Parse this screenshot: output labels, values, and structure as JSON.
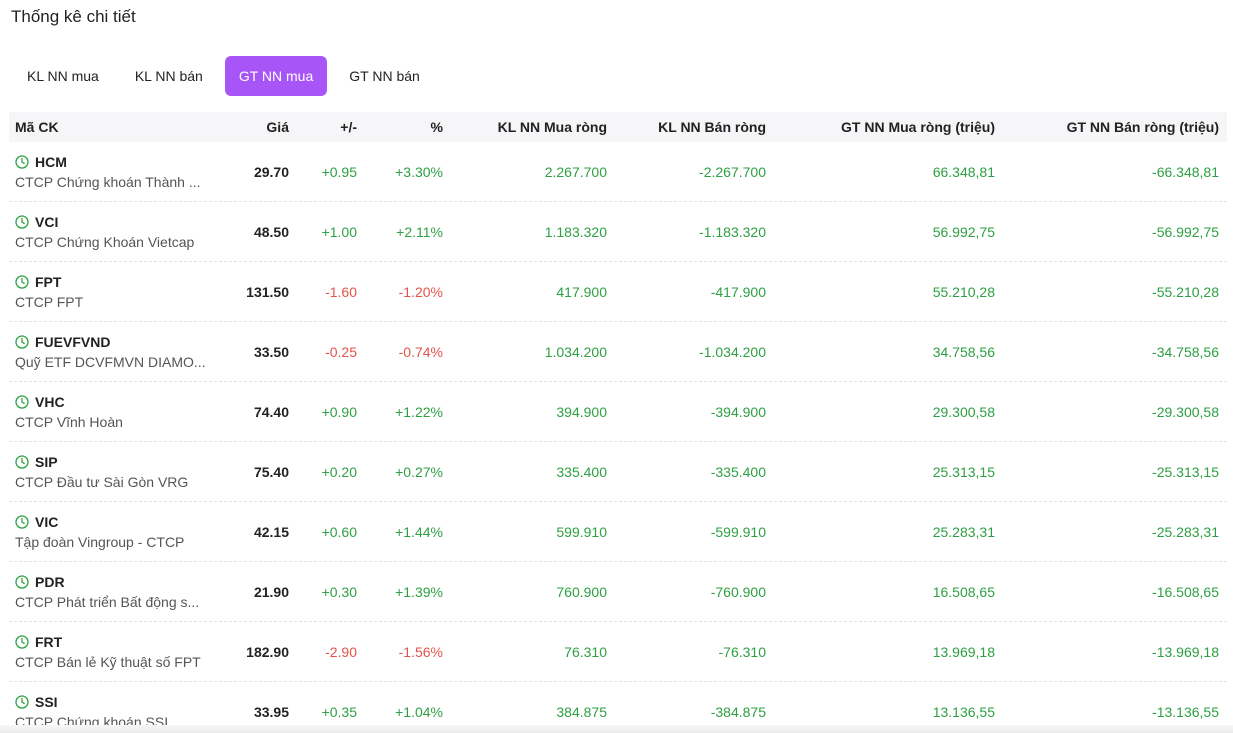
{
  "title": "Thống kê chi tiết",
  "tabs": [
    {
      "label": "KL NN mua",
      "active": false
    },
    {
      "label": "KL NN bán",
      "active": false
    },
    {
      "label": "GT NN mua",
      "active": true
    },
    {
      "label": "GT NN bán",
      "active": false
    }
  ],
  "columns": {
    "symbol": "Mã CK",
    "price": "Giá",
    "change": "+/-",
    "percent": "%",
    "kl_buy": "KL NN Mua ròng",
    "kl_sell": "KL NN Bán ròng",
    "gt_buy": "GT NN Mua ròng (triệu)",
    "gt_sell": "GT NN Bán ròng (triệu)"
  },
  "rows": [
    {
      "code": "HCM",
      "name": "CTCP Chứng khoán Thành ...",
      "price": "29.70",
      "change": "+0.95",
      "percent": "+3.30%",
      "dir": "up",
      "kl_buy": "2.267.700",
      "kl_sell": "-2.267.700",
      "gt_buy": "66.348,81",
      "gt_sell": "-66.348,81"
    },
    {
      "code": "VCI",
      "name": "CTCP Chứng Khoán Vietcap",
      "price": "48.50",
      "change": "+1.00",
      "percent": "+2.11%",
      "dir": "up",
      "kl_buy": "1.183.320",
      "kl_sell": "-1.183.320",
      "gt_buy": "56.992,75",
      "gt_sell": "-56.992,75"
    },
    {
      "code": "FPT",
      "name": "CTCP FPT",
      "price": "131.50",
      "change": "-1.60",
      "percent": "-1.20%",
      "dir": "down",
      "kl_buy": "417.900",
      "kl_sell": "-417.900",
      "gt_buy": "55.210,28",
      "gt_sell": "-55.210,28"
    },
    {
      "code": "FUEVFVND",
      "name": "Quỹ ETF DCVFMVN DIAMO...",
      "price": "33.50",
      "change": "-0.25",
      "percent": "-0.74%",
      "dir": "down",
      "kl_buy": "1.034.200",
      "kl_sell": "-1.034.200",
      "gt_buy": "34.758,56",
      "gt_sell": "-34.758,56"
    },
    {
      "code": "VHC",
      "name": "CTCP Vĩnh Hoàn",
      "price": "74.40",
      "change": "+0.90",
      "percent": "+1.22%",
      "dir": "up",
      "kl_buy": "394.900",
      "kl_sell": "-394.900",
      "gt_buy": "29.300,58",
      "gt_sell": "-29.300,58"
    },
    {
      "code": "SIP",
      "name": "CTCP Đầu tư Sài Gòn VRG",
      "price": "75.40",
      "change": "+0.20",
      "percent": "+0.27%",
      "dir": "up",
      "kl_buy": "335.400",
      "kl_sell": "-335.400",
      "gt_buy": "25.313,15",
      "gt_sell": "-25.313,15"
    },
    {
      "code": "VIC",
      "name": "Tập đoàn Vingroup - CTCP",
      "price": "42.15",
      "change": "+0.60",
      "percent": "+1.44%",
      "dir": "up",
      "kl_buy": "599.910",
      "kl_sell": "-599.910",
      "gt_buy": "25.283,31",
      "gt_sell": "-25.283,31"
    },
    {
      "code": "PDR",
      "name": "CTCP Phát triển Bất động s...",
      "price": "21.90",
      "change": "+0.30",
      "percent": "+1.39%",
      "dir": "up",
      "kl_buy": "760.900",
      "kl_sell": "-760.900",
      "gt_buy": "16.508,65",
      "gt_sell": "-16.508,65"
    },
    {
      "code": "FRT",
      "name": "CTCP Bán lẻ Kỹ thuật số FPT",
      "price": "182.90",
      "change": "-2.90",
      "percent": "-1.56%",
      "dir": "down",
      "kl_buy": "76.310",
      "kl_sell": "-76.310",
      "gt_buy": "13.969,18",
      "gt_sell": "-13.969,18"
    },
    {
      "code": "SSI",
      "name": "CTCP Chứng khoán SSI",
      "price": "33.95",
      "change": "+0.35",
      "percent": "+1.04%",
      "dir": "up",
      "kl_buy": "384.875",
      "kl_sell": "-384.875",
      "gt_buy": "13.136,55",
      "gt_sell": "-13.136,55"
    }
  ],
  "colors": {
    "accent": "#a855f7",
    "up": "#2ea043",
    "down": "#e5534b"
  },
  "icons": {
    "row_icon": "clock-icon"
  }
}
